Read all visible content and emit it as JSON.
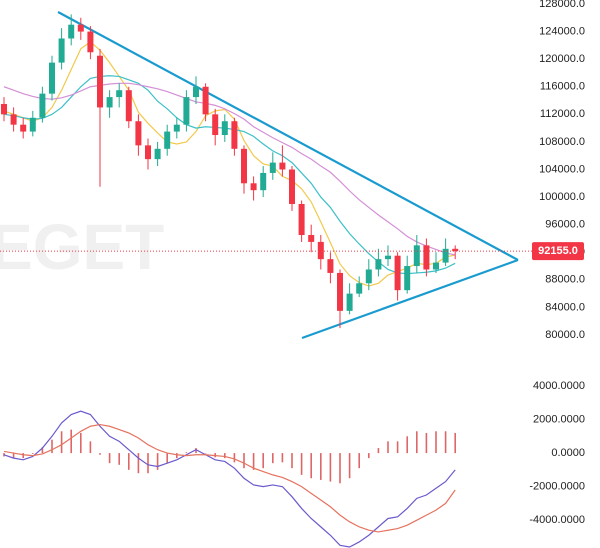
{
  "chart_data": [
    {
      "type": "candlestick",
      "watermark": "EGET",
      "up_color": "#22ab94",
      "down_color": "#f23645",
      "open": [
        113500,
        112000,
        110500,
        109500,
        111500,
        115000,
        119500,
        123000,
        125000,
        124000,
        120500,
        113000,
        114500,
        115500,
        111000,
        107500,
        105500,
        107000,
        109500,
        110500,
        114500,
        116000,
        112000,
        109000,
        111000,
        107000,
        102000,
        101000,
        103500,
        105000,
        104000,
        99000,
        94500,
        93500,
        91000,
        89000,
        83500,
        86000,
        87500,
        89500,
        91000,
        91500,
        86500,
        90000,
        93000,
        89500,
        90500,
        92500
      ],
      "high": [
        114500,
        113000,
        111500,
        112500,
        116000,
        120500,
        124500,
        126500,
        126000,
        124800,
        121500,
        115500,
        116500,
        116000,
        112000,
        108500,
        108000,
        110500,
        111500,
        115500,
        117500,
        116500,
        112800,
        112000,
        111500,
        107500,
        103000,
        104500,
        106500,
        107500,
        104500,
        99500,
        96000,
        94500,
        92000,
        89500,
        87500,
        88500,
        91000,
        92500,
        93000,
        92000,
        91500,
        94500,
        94000,
        92000,
        94000,
        93000
      ],
      "low": [
        111000,
        109500,
        108500,
        108800,
        110800,
        114000,
        118500,
        122000,
        122800,
        120000,
        101500,
        111500,
        113000,
        110000,
        106000,
        104000,
        104500,
        106000,
        108500,
        109500,
        113500,
        111000,
        107500,
        108000,
        106000,
        100500,
        99500,
        100000,
        102500,
        103000,
        98000,
        93500,
        92000,
        89500,
        87500,
        81000,
        83000,
        85500,
        86500,
        88500,
        90000,
        85000,
        86000,
        89000,
        88500,
        89000,
        90000,
        91000
      ],
      "close": [
        112000,
        110500,
        109500,
        111500,
        115000,
        119500,
        123000,
        125000,
        124000,
        121000,
        113000,
        114500,
        115500,
        111000,
        107500,
        105500,
        107000,
        109500,
        110500,
        114500,
        116000,
        112000,
        109000,
        111000,
        107000,
        102000,
        101000,
        103500,
        105000,
        104000,
        99000,
        94500,
        93500,
        91000,
        89000,
        83500,
        86000,
        87500,
        89500,
        91000,
        91500,
        86500,
        90000,
        93000,
        89500,
        90500,
        92500,
        92155
      ],
      "series": [
        {
          "color": "#f2c94c",
          "values": [
            112500,
            112000,
            111500,
            111000,
            111500,
            113000,
            115500,
            118500,
            121500,
            122500,
            121300,
            119500,
            117500,
            115500,
            112300,
            110700,
            109300,
            108000,
            107700,
            108000,
            109500,
            111800,
            112500,
            112700,
            111300,
            108200,
            106000,
            104800,
            104500,
            103000,
            102400,
            101200,
            99300,
            96400,
            93400,
            90300,
            88600,
            87600,
            87100,
            87500,
            88700,
            89200,
            89700,
            90400,
            90200,
            90400,
            91300,
            91600
          ]
        },
        {
          "color": "#3cc0c8",
          "values": [
            112000,
            111800,
            111500,
            111300,
            111400,
            112000,
            113000,
            114500,
            116000,
            117200,
            117500,
            117600,
            117500,
            117000,
            116500,
            115500,
            113900,
            112800,
            111500,
            110500,
            110000,
            110200,
            110100,
            110000,
            109800,
            109500,
            108800,
            107700,
            106700,
            106000,
            105000,
            103500,
            102000,
            100000,
            98500,
            96500,
            94700,
            93200,
            91800,
            90600,
            89500,
            89000,
            88900,
            89000,
            89100,
            89300,
            89700,
            90400
          ]
        },
        {
          "color": "#d48fd6",
          "values": [
            116000,
            115500,
            115000,
            114600,
            114300,
            114200,
            114400,
            114800,
            115400,
            116000,
            116200,
            116400,
            116500,
            116500,
            116300,
            116000,
            115700,
            115300,
            114800,
            114300,
            113800,
            113600,
            113300,
            112800,
            112100,
            111300,
            110200,
            109400,
            108600,
            107900,
            107200,
            106300,
            105500,
            104500,
            103600,
            102300,
            100900,
            99600,
            98500,
            97400,
            96400,
            95400,
            94300,
            93500,
            92900,
            92400,
            91900,
            91600
          ]
        }
      ],
      "current_price": {
        "value": 92155,
        "label": "92155.0"
      },
      "ylim": [
        80000,
        128000
      ],
      "yticks": [
        {
          "value": 80000,
          "label": "80000.0"
        },
        {
          "value": 84000,
          "label": "84000.0"
        },
        {
          "value": 88000,
          "label": "88000.0"
        },
        {
          "value": 92000,
          "label": "92000.0"
        },
        {
          "value": 96000,
          "label": "96000.0"
        },
        {
          "value": 100000,
          "label": "100000.0"
        },
        {
          "value": 104000,
          "label": "104000.0"
        },
        {
          "value": 108000,
          "label": "108000.0"
        },
        {
          "value": 112000,
          "label": "112000.0"
        },
        {
          "value": 116000,
          "label": "116000.0"
        },
        {
          "value": 120000,
          "label": "120000.0"
        },
        {
          "value": 124000,
          "label": "124000.0"
        },
        {
          "value": 128000,
          "label": "128000.0"
        }
      ]
    },
    {
      "type": "macd",
      "histogram": [
        -200,
        -300,
        -300,
        -50,
        350,
        800,
        1300,
        1400,
        1200,
        700,
        -100,
        -600,
        -700,
        -1000,
        -1200,
        -1200,
        -1000,
        -600,
        -300,
        50,
        300,
        0,
        -250,
        -300,
        -550,
        -900,
        -1000,
        -900,
        -600,
        -550,
        -900,
        -1300,
        -1500,
        -1600,
        -1700,
        -1800,
        -1500,
        -900,
        -300,
        300,
        700,
        700,
        1000,
        1300,
        1200,
        1300,
        1300,
        1200
      ],
      "histogram_color": "#e06666",
      "series": [
        {
          "color": "#6a5acd",
          "values": [
            -100,
            -300,
            -400,
            -200,
            300,
            1000,
            1800,
            2300,
            2500,
            2300,
            1600,
            1000,
            700,
            200,
            -300,
            -700,
            -800,
            -600,
            -400,
            -100,
            200,
            -100,
            -400,
            -500,
            -900,
            -1500,
            -1900,
            -2000,
            -1900,
            -2000,
            -2600,
            -3300,
            -3900,
            -4400,
            -4900,
            -5500,
            -5600,
            -5300,
            -4900,
            -4400,
            -3900,
            -3800,
            -3300,
            -2700,
            -2500,
            -2100,
            -1700,
            -1000
          ]
        },
        {
          "color": "#e5735f",
          "values": [
            100,
            0,
            -100,
            -150,
            -50,
            200,
            500,
            900,
            1300,
            1600,
            1700,
            1600,
            1400,
            1200,
            900,
            500,
            200,
            0,
            -100,
            -150,
            -100,
            -100,
            -150,
            -200,
            -350,
            -600,
            -900,
            -1100,
            -1300,
            -1450,
            -1700,
            -2000,
            -2400,
            -2800,
            -3200,
            -3700,
            -4100,
            -4400,
            -4600,
            -4700,
            -4600,
            -4500,
            -4300,
            -4000,
            -3700,
            -3400,
            -3000,
            -2200
          ]
        }
      ],
      "ylim": [
        -5600,
        4000
      ],
      "yticks": [
        {
          "value": -4000,
          "label": "-4000.0000"
        },
        {
          "value": -2000,
          "label": "-2000.0000"
        },
        {
          "value": 0,
          "label": "0.0000"
        },
        {
          "value": 2000,
          "label": "2000.0000"
        },
        {
          "value": 4000,
          "label": "4000.0000"
        }
      ]
    }
  ]
}
